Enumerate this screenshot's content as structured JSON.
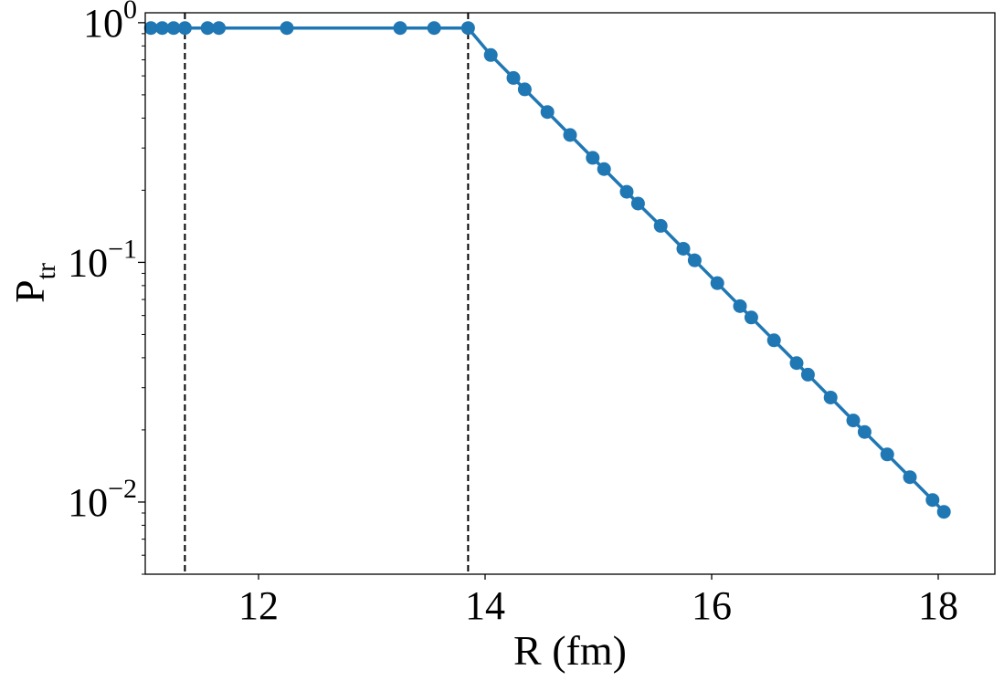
{
  "chart_data": {
    "type": "line",
    "title": "",
    "xlabel": "R (fm)",
    "ylabel": {
      "base": "P",
      "subscript": "tr"
    },
    "xlim": [
      11.0,
      18.5
    ],
    "ylim": [
      0.005,
      1.1
    ],
    "yscale": "log",
    "grid": false,
    "legend": "none",
    "x_ticks": [
      {
        "value": 12,
        "label": "12"
      },
      {
        "value": 14,
        "label": "14"
      },
      {
        "value": 16,
        "label": "16"
      },
      {
        "value": 18,
        "label": "18"
      }
    ],
    "y_ticks": [
      {
        "value": 1,
        "base": "10",
        "exp": "0"
      },
      {
        "value": 0.1,
        "base": "10",
        "exp": "−1"
      },
      {
        "value": 0.01,
        "base": "10",
        "exp": "−2"
      }
    ],
    "vertical_lines": [
      {
        "x": 11.35,
        "style": "dashed",
        "color": "#000000"
      },
      {
        "x": 13.85,
        "style": "dashed",
        "color": "#000000"
      }
    ],
    "series": [
      {
        "color": "#1f77b4",
        "marker": "circle",
        "points": [
          [
            11.05,
            0.95
          ],
          [
            11.15,
            0.95
          ],
          [
            11.25,
            0.95
          ],
          [
            11.35,
            0.95
          ],
          [
            11.55,
            0.95
          ],
          [
            11.65,
            0.95
          ],
          [
            12.25,
            0.95
          ],
          [
            13.25,
            0.95
          ],
          [
            13.55,
            0.95
          ],
          [
            13.85,
            0.95
          ],
          [
            14.05,
            0.733
          ],
          [
            14.25,
            0.588
          ],
          [
            14.35,
            0.527
          ],
          [
            14.55,
            0.424
          ],
          [
            14.75,
            0.34
          ],
          [
            14.95,
            0.273
          ],
          [
            15.05,
            0.245
          ],
          [
            15.25,
            0.197
          ],
          [
            15.35,
            0.176
          ],
          [
            15.55,
            0.142
          ],
          [
            15.75,
            0.114
          ],
          [
            15.85,
            0.102
          ],
          [
            16.05,
            0.0819
          ],
          [
            16.25,
            0.0657
          ],
          [
            16.35,
            0.0589
          ],
          [
            16.55,
            0.0473
          ],
          [
            16.75,
            0.038
          ],
          [
            16.85,
            0.034
          ],
          [
            17.05,
            0.0273
          ],
          [
            17.25,
            0.0219
          ],
          [
            17.35,
            0.0196
          ],
          [
            17.55,
            0.0158
          ],
          [
            17.75,
            0.0127
          ],
          [
            17.95,
            0.0102
          ],
          [
            18.05,
            0.0091
          ]
        ]
      }
    ]
  }
}
